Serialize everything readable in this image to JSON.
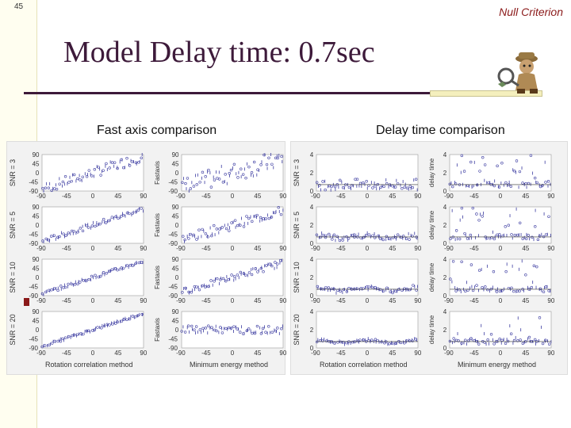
{
  "slide": {
    "number": "45",
    "header_tag": "Null Criterion",
    "title": "Model Delay time: 0.7sec"
  },
  "left_panel": {
    "heading": "Fast axis comparison",
    "row_labels": [
      "SNR = 3",
      "SNR = 5",
      "SNR = 10",
      "SNR = 20"
    ],
    "right_ylabel": "Fastaxis",
    "y_ticks": [
      "90",
      "45",
      "0",
      "-45",
      "-90"
    ],
    "x_ticks": [
      "-90",
      "-45",
      "0",
      "45",
      "90"
    ],
    "xlabel_left": "Rotation correlation method",
    "xlabel_right": "Minimum energy method"
  },
  "right_panel": {
    "heading": "Delay time comparison",
    "row_labels": [
      "SNR = 3",
      "SNR = 5",
      "SNR = 10",
      "SNR = 20"
    ],
    "right_ylabel": "delay time",
    "y_ticks": [
      "4",
      "2",
      "0"
    ],
    "x_ticks": [
      "-90",
      "-45",
      "0",
      "45",
      "90"
    ],
    "xlabel_left": "Rotation correlation method",
    "xlabel_right": "Minimum energy method"
  },
  "colors": {
    "title": "#3d1a3a",
    "header_tag": "#8b1a1a",
    "points": "#3a3aa0"
  },
  "icons": {
    "mascot": "detective-mascot-icon"
  },
  "chart_data": [
    {
      "type": "scatter",
      "title": "Fast axis comparison",
      "xlabel": "Rotation correlation method",
      "ylabel": "",
      "xlim": [
        -90,
        90
      ],
      "ylim": [
        -90,
        90
      ],
      "rows": [
        "SNR = 3",
        "SNR = 5",
        "SNR = 10",
        "SNR = 20"
      ],
      "columns": [
        "Rotation correlation method",
        "Minimum energy method"
      ],
      "trend": [
        [
          {
            "x": -90,
            "y": -80
          },
          {
            "x": 90,
            "y": 80
          }
        ],
        [
          {
            "x": -90,
            "y": -90
          },
          {
            "x": 90,
            "y": 90
          }
        ]
      ]
    },
    {
      "type": "scatter",
      "title": "Delay time comparison",
      "xlabel": "Rotation correlation method",
      "ylabel": "delay time",
      "xlim": [
        -90,
        90
      ],
      "ylim": [
        0,
        4
      ],
      "rows": [
        "SNR = 3",
        "SNR = 5",
        "SNR = 10",
        "SNR = 20"
      ],
      "columns": [
        "Rotation correlation method",
        "Minimum energy method"
      ],
      "reference_delay": 0.7
    }
  ]
}
